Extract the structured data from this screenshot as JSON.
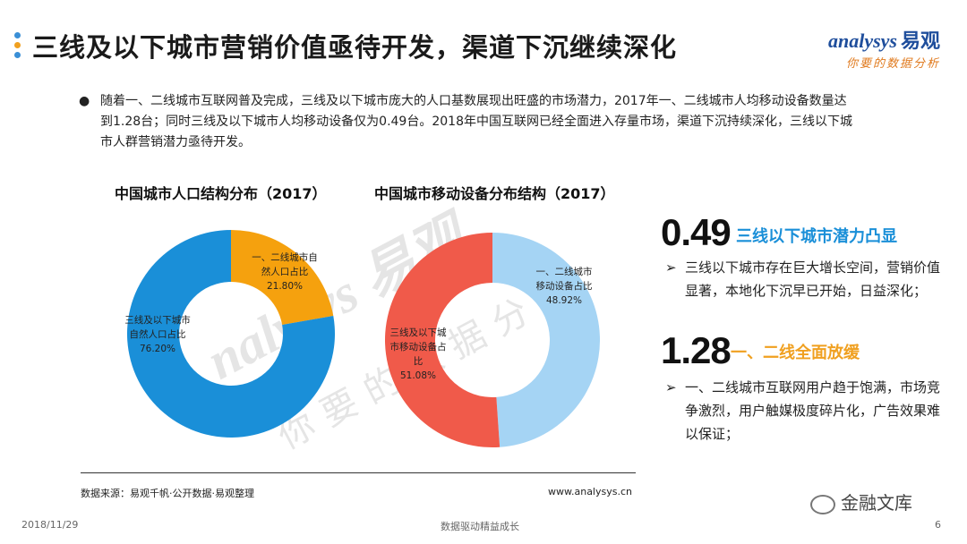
{
  "header": {
    "title": "三线及以下城市营销价值亟待开发，渠道下沉继续深化",
    "dot_colors": [
      "#3a8fd6",
      "#f0a020",
      "#3a8fd6"
    ]
  },
  "logo": {
    "name_en": "nalysys",
    "name_en_prefix": "a",
    "name_cn": "易观",
    "slogan": "你要的数据分析"
  },
  "intro_text": "随着一、二线城市互联网普及完成，三线及以下城市庞大的人口基数展现出旺盛的市场潜力，2017年一、二线城市人均移动设备数量达到1.28台；同时三线及以下城市人均移动设备仅为0.49台。2018年中国互联网已经全面进入存量市场，渠道下沉持续深化，三线以下城市人群营销潜力亟待开发。",
  "chart_data": [
    {
      "type": "pie",
      "title": "中国城市人口结构分布（2017）",
      "slices": [
        {
          "label": "一、二线城市自然人口占比",
          "label_lines": [
            "一、二线城市自",
            "然人口占比"
          ],
          "value": 21.8,
          "value_label": "21.80%",
          "color": "#f5a10e"
        },
        {
          "label": "三线及以下城市自然人口占比",
          "label_lines": [
            "三线及以下城市",
            "自然人口占比"
          ],
          "value": 76.2,
          "value_label": "76.20%",
          "color": "#1a8fd8"
        }
      ]
    },
    {
      "type": "pie",
      "title": "中国城市移动设备分布结构（2017）",
      "slices": [
        {
          "label": "一、二线城市移动设备占比",
          "label_lines": [
            "一、二线城市",
            "移动设备占比"
          ],
          "value": 48.92,
          "value_label": "48.92%",
          "color": "#a5d4f4"
        },
        {
          "label": "三线及以下城市移动设备占比",
          "label_lines": [
            "三线及以下城",
            "市移动设备占",
            "比"
          ],
          "value": 51.08,
          "value_label": "51.08%",
          "color": "#f05a4a"
        }
      ]
    }
  ],
  "highlights": [
    {
      "number": "0.49",
      "heading": "三线以下城市潜力凸显",
      "heading_color": "#1a8fd8",
      "text": "三线以下城市存在巨大增长空间，营销价值显著，本地化下沉早已开始，日益深化；"
    },
    {
      "number": "1.28",
      "heading": "一、二线全面放缓",
      "heading_color": "#f0a020",
      "text": "一、二线城市互联网用户趋于饱满，市场竞争激烈，用户触媒极度碎片化，广告效果难以保证；"
    }
  ],
  "watermark": {
    "text": "nalysys 易观",
    "slogan": "你要的数据分析"
  },
  "source": "数据来源：易观千帆·公开数据·易观整理",
  "site": "www.analysys.cn",
  "footer": {
    "date": "2018/11/29",
    "tagline": "数据驱动精益成长",
    "page": "6"
  },
  "wechat": "金融文库"
}
